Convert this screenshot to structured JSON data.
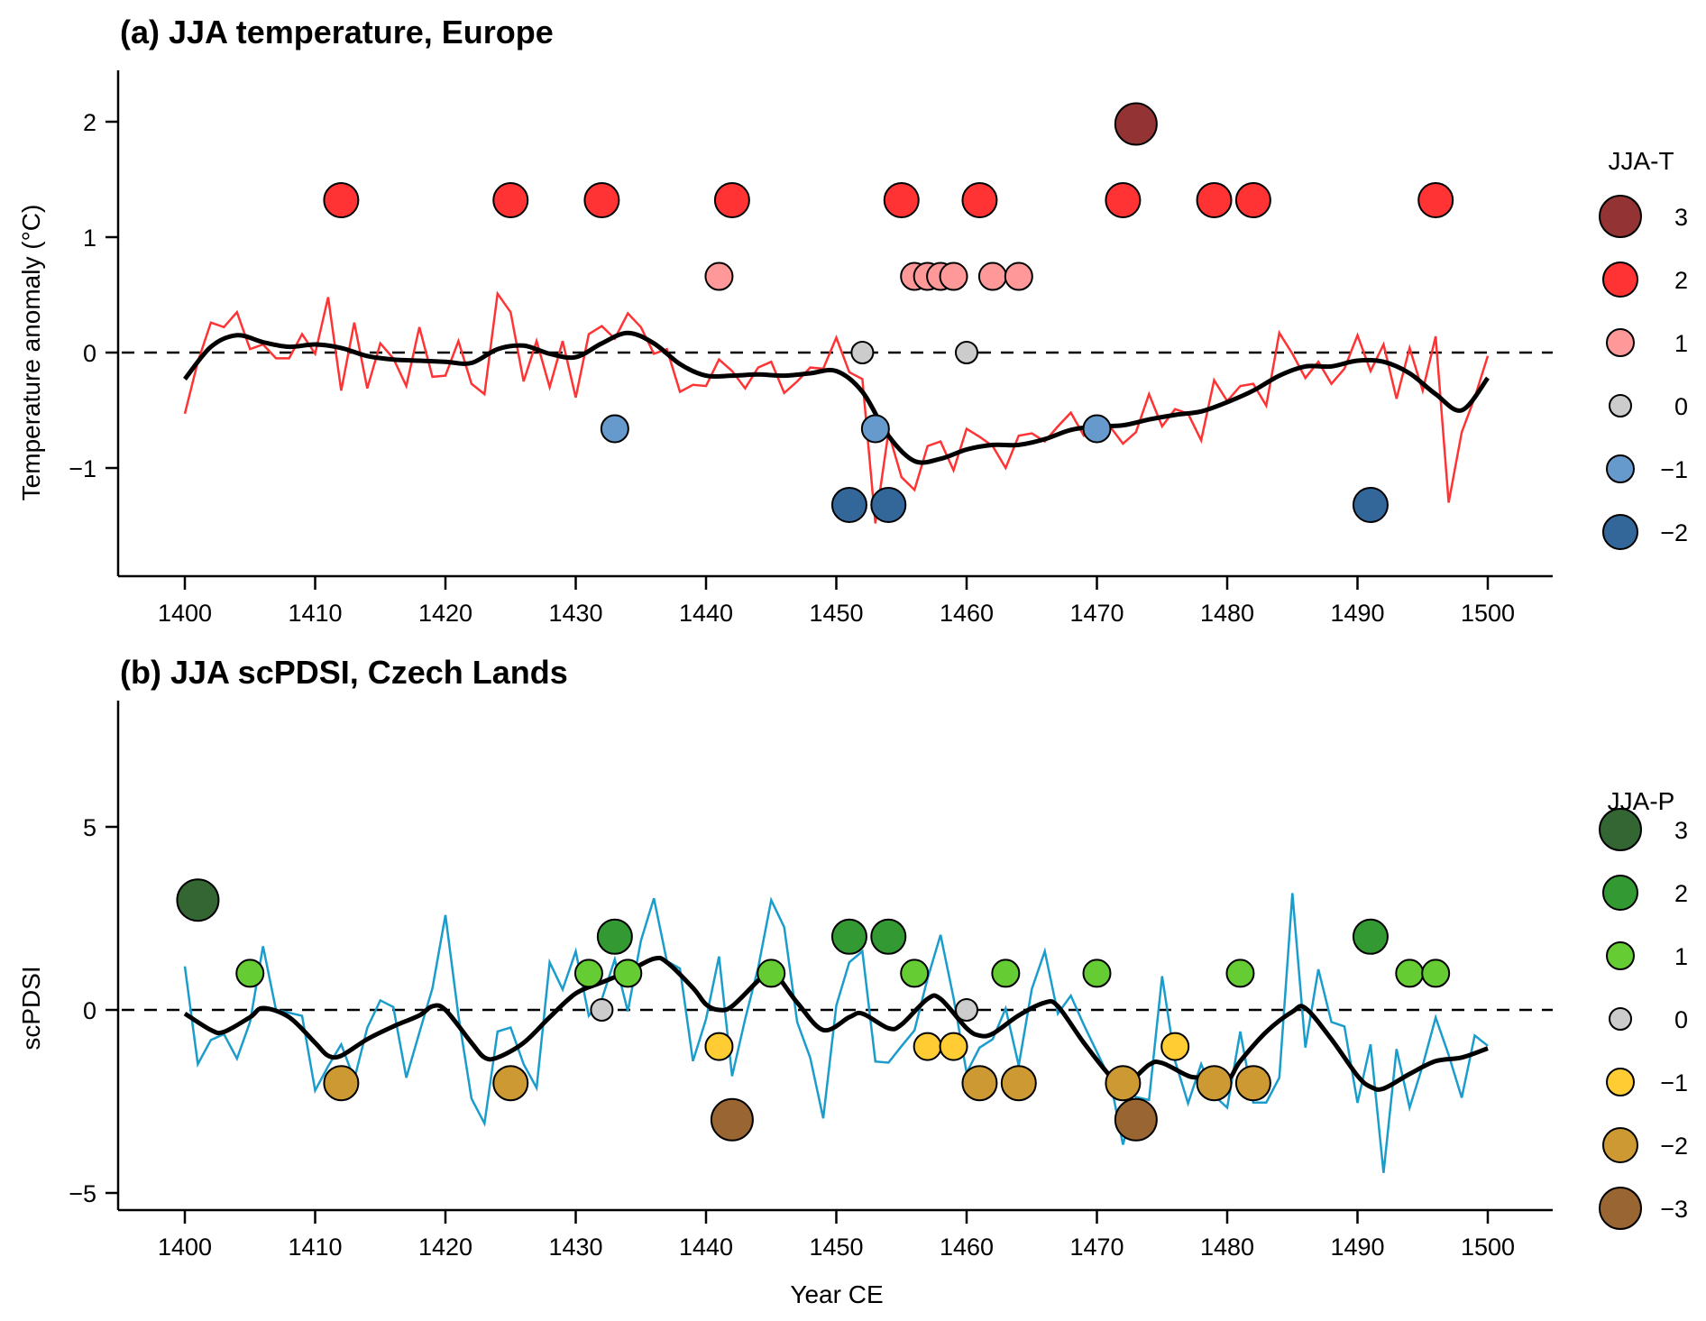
{
  "chart_data": [
    {
      "type": "line",
      "panel": "a",
      "title": "(a) JJA temperature, Europe",
      "xlabel": "",
      "ylabel": "Temperature anomaly (°C)",
      "xlim": [
        1395,
        1505
      ],
      "ylim": [
        -2.0,
        2.45
      ],
      "xticks": [
        1400,
        1410,
        1420,
        1430,
        1440,
        1450,
        1460,
        1470,
        1480,
        1490,
        1500
      ],
      "yticks": [
        -1,
        0,
        1,
        2
      ],
      "ytick_labels": [
        "−1",
        "0",
        "1",
        "2"
      ],
      "reference_line": {
        "y": 0,
        "style": "dashed"
      },
      "x": [
        1400,
        1401,
        1402,
        1403,
        1404,
        1405,
        1406,
        1407,
        1408,
        1409,
        1410,
        1411,
        1412,
        1413,
        1414,
        1415,
        1416,
        1417,
        1418,
        1419,
        1420,
        1421,
        1422,
        1423,
        1424,
        1425,
        1426,
        1427,
        1428,
        1429,
        1430,
        1431,
        1432,
        1433,
        1434,
        1435,
        1436,
        1437,
        1438,
        1439,
        1440,
        1441,
        1442,
        1443,
        1444,
        1445,
        1446,
        1447,
        1448,
        1449,
        1450,
        1451,
        1452,
        1453,
        1454,
        1455,
        1456,
        1457,
        1458,
        1459,
        1460,
        1461,
        1462,
        1463,
        1464,
        1465,
        1466,
        1467,
        1468,
        1469,
        1470,
        1471,
        1472,
        1473,
        1474,
        1475,
        1476,
        1477,
        1478,
        1479,
        1480,
        1481,
        1482,
        1483,
        1484,
        1485,
        1486,
        1487,
        1488,
        1489,
        1490,
        1491,
        1492,
        1493,
        1494,
        1495,
        1496,
        1497,
        1498,
        1499,
        1500
      ],
      "series": [
        {
          "name": "annual",
          "color": "#ff3333",
          "values": [
            -0.53,
            -0.08,
            0.26,
            0.22,
            0.35,
            0.03,
            0.07,
            -0.05,
            -0.05,
            0.16,
            -0.01,
            0.48,
            -0.33,
            0.26,
            -0.31,
            0.08,
            -0.05,
            -0.29,
            0.22,
            -0.21,
            -0.2,
            0.1,
            -0.27,
            -0.36,
            0.51,
            0.35,
            -0.25,
            0.1,
            -0.3,
            0.1,
            -0.39,
            0.16,
            0.23,
            0.12,
            0.34,
            0.22,
            -0.01,
            0.03,
            -0.34,
            -0.28,
            -0.29,
            -0.06,
            -0.16,
            -0.31,
            -0.13,
            -0.08,
            -0.35,
            -0.25,
            -0.13,
            -0.14,
            0.13,
            -0.17,
            -0.23,
            -1.48,
            -0.69,
            -1.08,
            -1.19,
            -0.81,
            -0.77,
            -1.02,
            -0.66,
            -0.73,
            -0.81,
            -1.0,
            -0.72,
            -0.7,
            -0.77,
            -0.64,
            -0.52,
            -0.72,
            -0.66,
            -0.64,
            -0.79,
            -0.69,
            -0.36,
            -0.64,
            -0.49,
            -0.53,
            -0.76,
            -0.24,
            -0.42,
            -0.29,
            -0.27,
            -0.46,
            0.17,
            -0.01,
            -0.22,
            -0.08,
            -0.27,
            -0.14,
            0.15,
            -0.16,
            0.07,
            -0.4,
            0.04,
            -0.33,
            0.14,
            -1.3,
            -0.69,
            -0.39,
            -0.03
          ]
        },
        {
          "name": "smoothed",
          "color": "#000000",
          "x": [
            1400,
            1402,
            1404,
            1406,
            1408,
            1410,
            1412,
            1414,
            1416,
            1418,
            1420,
            1422,
            1424,
            1426,
            1428,
            1430,
            1432,
            1434,
            1436,
            1438,
            1440,
            1442,
            1444,
            1446,
            1448,
            1450,
            1452,
            1454,
            1456,
            1458,
            1460,
            1462,
            1464,
            1466,
            1468,
            1470,
            1472,
            1474,
            1476,
            1478,
            1480,
            1482,
            1484,
            1486,
            1488,
            1490,
            1492,
            1494,
            1496,
            1498,
            1500
          ],
          "values": [
            -0.23,
            0.05,
            0.15,
            0.09,
            0.05,
            0.07,
            0.04,
            -0.03,
            -0.06,
            -0.07,
            -0.08,
            -0.09,
            0.03,
            0.06,
            -0.01,
            -0.04,
            0.08,
            0.17,
            0.08,
            -0.1,
            -0.2,
            -0.2,
            -0.19,
            -0.2,
            -0.18,
            -0.16,
            -0.34,
            -0.72,
            -0.94,
            -0.92,
            -0.84,
            -0.8,
            -0.8,
            -0.75,
            -0.67,
            -0.64,
            -0.63,
            -0.58,
            -0.54,
            -0.51,
            -0.43,
            -0.33,
            -0.2,
            -0.12,
            -0.12,
            -0.07,
            -0.08,
            -0.18,
            -0.36,
            -0.5,
            -0.22
          ]
        }
      ],
      "marker_scale": 0.66,
      "markers": [
        {
          "year": 1412,
          "class": 2
        },
        {
          "year": 1425,
          "class": 2
        },
        {
          "year": 1432,
          "class": 2
        },
        {
          "year": 1442,
          "class": 2
        },
        {
          "year": 1455,
          "class": 2
        },
        {
          "year": 1461,
          "class": 2
        },
        {
          "year": 1472,
          "class": 2
        },
        {
          "year": 1479,
          "class": 2
        },
        {
          "year": 1482,
          "class": 2
        },
        {
          "year": 1496,
          "class": 2
        },
        {
          "year": 1473,
          "class": 3
        },
        {
          "year": 1441,
          "class": 1
        },
        {
          "year": 1456,
          "class": 1
        },
        {
          "year": 1457,
          "class": 1
        },
        {
          "year": 1458,
          "class": 1
        },
        {
          "year": 1459,
          "class": 1
        },
        {
          "year": 1462,
          "class": 1
        },
        {
          "year": 1464,
          "class": 1
        },
        {
          "year": 1452,
          "class": 0
        },
        {
          "year": 1460,
          "class": 0
        },
        {
          "year": 1433,
          "class": -1
        },
        {
          "year": 1453,
          "class": -1
        },
        {
          "year": 1470,
          "class": -1
        },
        {
          "year": 1451,
          "class": -2
        },
        {
          "year": 1454,
          "class": -2
        },
        {
          "year": 1491,
          "class": -2
        }
      ],
      "legend": {
        "title": "JJA-T",
        "placement": "right",
        "entries": [
          {
            "class": 3,
            "label": "3",
            "color": "#943333"
          },
          {
            "class": 2,
            "label": "2",
            "color": "#ff3333"
          },
          {
            "class": 1,
            "label": "1",
            "color": "#ff9999"
          },
          {
            "class": 0,
            "label": "0",
            "color": "#cccccc"
          },
          {
            "class": -1,
            "label": "−1",
            "color": "#6699cc"
          },
          {
            "class": -2,
            "label": "−2",
            "color": "#336699"
          }
        ]
      }
    },
    {
      "type": "line",
      "panel": "b",
      "title": "(b) JJA scPDSI, Czech Lands",
      "xlabel": "Year CE",
      "ylabel": "scPDSI",
      "xlim": [
        1395,
        1505
      ],
      "ylim": [
        -5.5,
        8.4
      ],
      "xticks": [
        1400,
        1410,
        1420,
        1430,
        1440,
        1450,
        1460,
        1470,
        1480,
        1490,
        1500
      ],
      "yticks": [
        -5,
        0,
        5
      ],
      "ytick_labels": [
        "−5",
        "0",
        "5"
      ],
      "reference_line": {
        "y": 0,
        "style": "dashed"
      },
      "x": [
        1400,
        1401,
        1402,
        1403,
        1404,
        1405,
        1406,
        1407,
        1408,
        1409,
        1410,
        1411,
        1412,
        1413,
        1414,
        1415,
        1416,
        1417,
        1418,
        1419,
        1420,
        1421,
        1422,
        1423,
        1424,
        1425,
        1426,
        1427,
        1428,
        1429,
        1430,
        1431,
        1432,
        1433,
        1434,
        1435,
        1436,
        1437,
        1438,
        1439,
        1440,
        1441,
        1442,
        1443,
        1444,
        1445,
        1446,
        1447,
        1448,
        1449,
        1450,
        1451,
        1452,
        1453,
        1454,
        1455,
        1456,
        1457,
        1458,
        1459,
        1460,
        1461,
        1462,
        1463,
        1464,
        1465,
        1466,
        1467,
        1468,
        1469,
        1470,
        1471,
        1472,
        1473,
        1474,
        1475,
        1476,
        1477,
        1478,
        1479,
        1480,
        1481,
        1482,
        1483,
        1484,
        1485,
        1486,
        1487,
        1488,
        1489,
        1490,
        1491,
        1492,
        1493,
        1494,
        1495,
        1496,
        1497,
        1498,
        1499,
        1500
      ],
      "series": [
        {
          "name": "annual",
          "color": "#1a9dcc",
          "values": [
            1.19,
            -1.48,
            -0.82,
            -0.66,
            -1.33,
            -0.33,
            1.74,
            0.0,
            -0.08,
            -0.16,
            -2.2,
            -1.54,
            -0.94,
            -1.9,
            -0.49,
            0.26,
            0.08,
            -1.85,
            -0.62,
            0.59,
            2.59,
            -0.16,
            -2.42,
            -3.1,
            -0.59,
            -0.48,
            -1.48,
            -2.13,
            1.3,
            0.56,
            1.6,
            -0.16,
            0.29,
            1.38,
            -0.04,
            1.89,
            3.05,
            1.33,
            1.13,
            -1.4,
            -0.25,
            1.46,
            -1.81,
            -0.25,
            1.15,
            3.0,
            2.26,
            -0.33,
            -1.31,
            -2.96,
            0.12,
            1.3,
            1.6,
            -1.41,
            -1.44,
            -0.99,
            -0.56,
            0.86,
            2.05,
            0.33,
            -1.72,
            -1.03,
            -0.8,
            0.04,
            -1.52,
            0.57,
            1.6,
            -0.1,
            0.39,
            -0.41,
            -1.15,
            -1.89,
            -3.68,
            -2.38,
            -2.46,
            0.92,
            -1.4,
            -2.55,
            -1.48,
            -2.34,
            -2.67,
            -0.59,
            -2.53,
            -2.53,
            -1.85,
            3.19,
            -1.03,
            1.11,
            -0.33,
            -0.45,
            -2.54,
            -0.94,
            -4.45,
            -1.07,
            -2.67,
            -1.52,
            -0.21,
            -1.23,
            -2.4,
            -0.7,
            -0.98
          ]
        },
        {
          "name": "smoothed",
          "color": "#000000",
          "x": [
            1400,
            1402,
            1403,
            1405,
            1406,
            1408,
            1410,
            1411,
            1412,
            1414,
            1416,
            1418,
            1419,
            1420,
            1422,
            1423,
            1424,
            1426,
            1428,
            1430,
            1432,
            1434,
            1436,
            1437,
            1439,
            1440,
            1441,
            1442,
            1444,
            1445,
            1447,
            1449,
            1451,
            1452,
            1454,
            1455,
            1457,
            1458,
            1460,
            1461,
            1462,
            1464,
            1466,
            1467,
            1469,
            1471,
            1472,
            1474,
            1475,
            1477,
            1478,
            1480,
            1481,
            1483,
            1485,
            1486,
            1488,
            1490,
            1491,
            1492,
            1494,
            1496,
            1498,
            1500
          ],
          "values": [
            -0.1,
            -0.55,
            -0.6,
            -0.2,
            0.05,
            -0.2,
            -0.9,
            -1.25,
            -1.25,
            -0.8,
            -0.45,
            -0.15,
            0.1,
            0.0,
            -0.9,
            -1.3,
            -1.3,
            -0.9,
            -0.2,
            0.45,
            0.75,
            1.05,
            1.4,
            1.3,
            0.6,
            0.15,
            0.0,
            0.1,
            0.8,
            1.1,
            0.2,
            -0.55,
            -0.2,
            -0.1,
            -0.5,
            -0.4,
            0.3,
            0.3,
            -0.5,
            -0.7,
            -0.65,
            -0.15,
            0.2,
            0.1,
            -0.9,
            -1.8,
            -2.1,
            -1.5,
            -1.45,
            -1.8,
            -1.85,
            -1.9,
            -1.4,
            -0.6,
            -0.05,
            0.05,
            -0.8,
            -1.8,
            -2.1,
            -2.15,
            -1.75,
            -1.4,
            -1.3,
            -1.05
          ]
        }
      ],
      "marker_scale": 1.0,
      "markers": [
        {
          "year": 1401,
          "class": 3
        },
        {
          "year": 1433,
          "class": 2
        },
        {
          "year": 1451,
          "class": 2
        },
        {
          "year": 1454,
          "class": 2
        },
        {
          "year": 1491,
          "class": 2
        },
        {
          "year": 1405,
          "class": 1
        },
        {
          "year": 1431,
          "class": 1
        },
        {
          "year": 1434,
          "class": 1
        },
        {
          "year": 1445,
          "class": 1
        },
        {
          "year": 1456,
          "class": 1
        },
        {
          "year": 1463,
          "class": 1
        },
        {
          "year": 1470,
          "class": 1
        },
        {
          "year": 1481,
          "class": 1
        },
        {
          "year": 1494,
          "class": 1
        },
        {
          "year": 1496,
          "class": 1
        },
        {
          "year": 1432,
          "class": 0
        },
        {
          "year": 1460,
          "class": 0
        },
        {
          "year": 1441,
          "class": -1
        },
        {
          "year": 1457,
          "class": -1
        },
        {
          "year": 1459,
          "class": -1
        },
        {
          "year": 1476,
          "class": -1
        },
        {
          "year": 1412,
          "class": -2
        },
        {
          "year": 1425,
          "class": -2
        },
        {
          "year": 1461,
          "class": -2
        },
        {
          "year": 1464,
          "class": -2
        },
        {
          "year": 1472,
          "class": -2
        },
        {
          "year": 1479,
          "class": -2
        },
        {
          "year": 1482,
          "class": -2
        },
        {
          "year": 1442,
          "class": -3
        },
        {
          "year": 1473,
          "class": -3
        }
      ],
      "legend": {
        "title": "JJA-P",
        "placement": "right",
        "entries": [
          {
            "class": 3,
            "label": "3",
            "color": "#336633"
          },
          {
            "class": 2,
            "label": "2",
            "color": "#339933"
          },
          {
            "class": 1,
            "label": "1",
            "color": "#66cc33"
          },
          {
            "class": 0,
            "label": "0",
            "color": "#cccccc"
          },
          {
            "class": -1,
            "label": "−1",
            "color": "#ffcc33"
          },
          {
            "class": -2,
            "label": "−2",
            "color": "#cc9933"
          },
          {
            "class": -3,
            "label": "−3",
            "color": "#996633"
          }
        ]
      }
    }
  ]
}
